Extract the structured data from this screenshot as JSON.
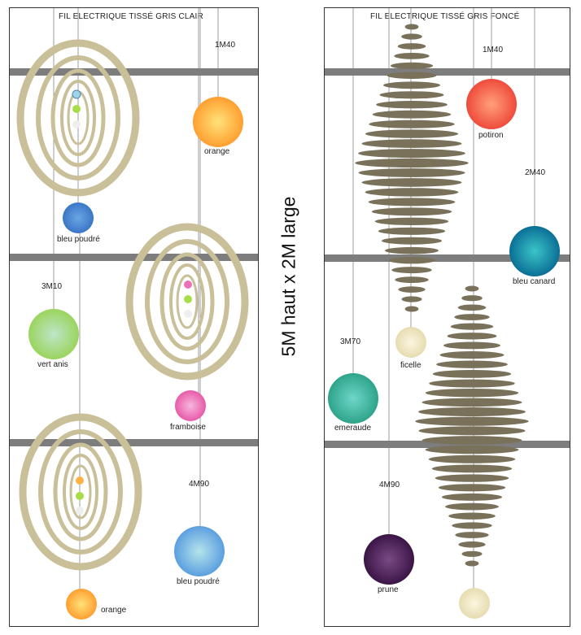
{
  "dimension": "5M haut x 2M large",
  "left_panel": {
    "title": "FIL ELECTRIQUE TISSÉ GRIS CLAIR",
    "measures": {
      "m1": "1M40",
      "m2": "3M10",
      "m3": "4M90"
    },
    "lamps": {
      "orange_top": "orange",
      "bleu_poudre_top": "bleu poudré",
      "vert_anis": "vert anis",
      "framboise": "framboise",
      "bleu_poudre_bottom": "bleu poudré",
      "orange_bottom": "orange"
    }
  },
  "right_panel": {
    "title": "FIL ELECTRIQUE TISSÉ GRIS FONCÉ",
    "measures": {
      "m1": "1M40",
      "m2": "2M40",
      "m3": "3M70",
      "m4": "4M90"
    },
    "lamps": {
      "potiron": "potiron",
      "bleu_canard": "bleu canard",
      "ficelle": "ficelle",
      "emeraude": "emeraude",
      "prune": "prune"
    }
  },
  "colors": {
    "frame": "#333333",
    "bar": "#7d7d7d",
    "ring_light": "#c9bf98",
    "disc_dark": "#79715a",
    "orange": "#ffb347",
    "bleu_poudre": "#9fd3ea",
    "bleu_poudre_small": "#4a87d2",
    "vert_anis": "#a9dd72",
    "framboise": "#ec72b8",
    "potiron": "#f2614a",
    "bleu_canard": "#0d91a8",
    "ficelle": "#efe7cc",
    "emeraude": "#3ab39a",
    "prune": "#4a1f57"
  }
}
